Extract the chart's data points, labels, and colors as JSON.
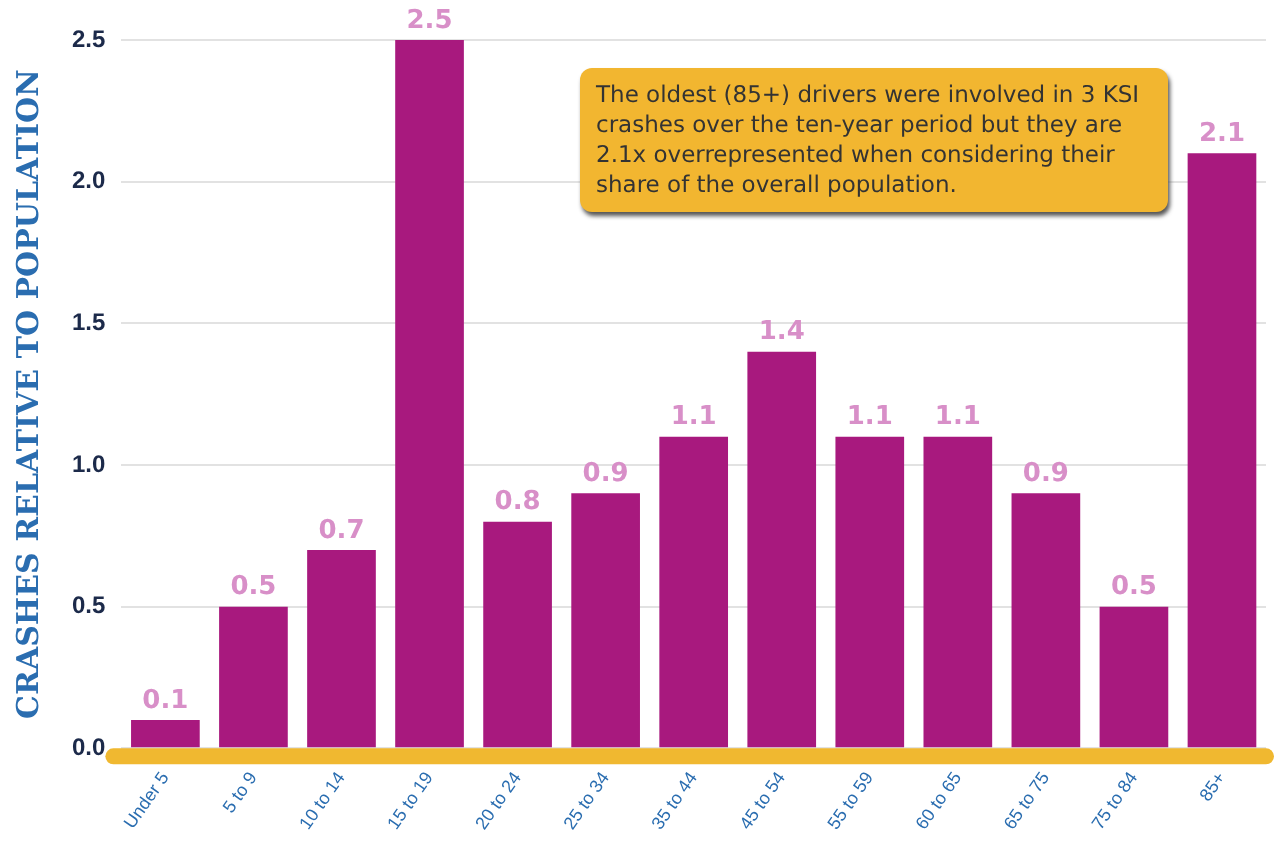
{
  "chart_data": {
    "type": "bar",
    "ylabel": "CRASHES RELATIVE TO POPULATION",
    "categories": [
      "Under 5",
      "5 to 9",
      "10 to 14",
      "15 to 19",
      "20 to 24",
      "25 to 34",
      "35 to 44",
      "45 to 54",
      "55 to 59",
      "60 to 65",
      "65 to 75",
      "75 to 84",
      "85+"
    ],
    "values": [
      0.1,
      0.5,
      0.7,
      2.5,
      0.8,
      0.9,
      1.1,
      1.4,
      1.1,
      1.1,
      0.9,
      0.5,
      2.1
    ],
    "color": "#a8197e",
    "data_labels": true,
    "ylim": [
      0,
      2.5
    ],
    "yticks": [
      {
        "value": 0,
        "label": "0.0"
      },
      {
        "value": 0.5,
        "label": "0.5"
      },
      {
        "value": 1,
        "label": "1.0"
      },
      {
        "value": 1.5,
        "label": "1.5"
      },
      {
        "value": 2,
        "label": "2.0"
      },
      {
        "value": 2.5,
        "label": "2.5"
      }
    ],
    "grid": "y",
    "legend": false,
    "annotations": [
      "The oldest (85+) drivers were involved in 3 KSI crashes over the ten-year period but they are 2.1x overrepresented when considering their share of the overall population."
    ]
  }
}
